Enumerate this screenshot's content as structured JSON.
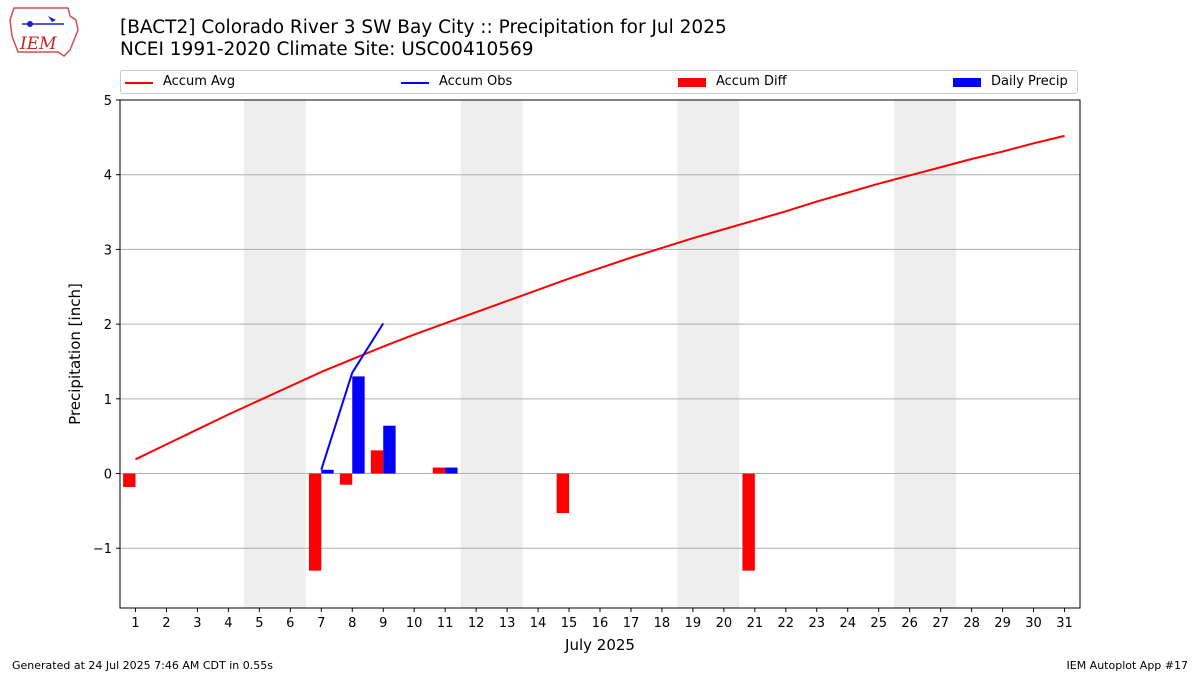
{
  "header": {
    "logo_text": "IEM",
    "title_line1": "[BACT2] Colorado River 3 SW Bay City :: Precipitation for Jul 2025",
    "title_line2": "NCEI 1991-2020 Climate Site: USC00410569"
  },
  "legend": {
    "items": [
      {
        "label": "Accum Avg",
        "color": "#ff0000",
        "kind": "line"
      },
      {
        "label": "Accum Obs",
        "color": "#0000ff",
        "kind": "line"
      },
      {
        "label": "Accum Diff",
        "color": "#ff0000",
        "kind": "patch"
      },
      {
        "label": "Daily Precip",
        "color": "#0000ff",
        "kind": "patch"
      }
    ]
  },
  "footer": {
    "generated": "Generated at 24 Jul 2025 7:46 AM CDT in 0.55s",
    "app": "IEM Autoplot App #17"
  },
  "chart_data": {
    "type": "bar",
    "xlabel": "July 2025",
    "ylabel": "Precipitation [inch]",
    "xlim": [
      0.5,
      31.5
    ],
    "ylim": [
      -1.8,
      5
    ],
    "yticks": [
      -1,
      0,
      1,
      2,
      3,
      4,
      5
    ],
    "grid": "y",
    "legend_position": "top",
    "days": [
      1,
      2,
      3,
      4,
      5,
      6,
      7,
      8,
      9,
      10,
      11,
      12,
      13,
      14,
      15,
      16,
      17,
      18,
      19,
      20,
      21,
      22,
      23,
      24,
      25,
      26,
      27,
      28,
      29,
      30,
      31
    ],
    "weekend_shading": [
      [
        5,
        6
      ],
      [
        12,
        13
      ],
      [
        19,
        20
      ],
      [
        26,
        27
      ]
    ],
    "series": [
      {
        "name": "Accum Avg",
        "kind": "line",
        "color": "#ff0000",
        "x": [
          1,
          2,
          3,
          4,
          5,
          6,
          7,
          8,
          9,
          10,
          11,
          12,
          13,
          14,
          15,
          16,
          17,
          18,
          19,
          20,
          21,
          22,
          23,
          24,
          25,
          26,
          27,
          28,
          29,
          30,
          31
        ],
        "values": [
          0.19,
          0.39,
          0.59,
          0.79,
          0.98,
          1.17,
          1.36,
          1.53,
          1.7,
          1.86,
          2.01,
          2.16,
          2.31,
          2.46,
          2.61,
          2.75,
          2.89,
          3.02,
          3.15,
          3.27,
          3.39,
          3.51,
          3.64,
          3.76,
          3.88,
          3.99,
          4.1,
          4.21,
          4.31,
          4.42,
          4.52
        ]
      },
      {
        "name": "Accum Obs",
        "kind": "line",
        "color": "#0000ff",
        "x": [
          7,
          8,
          9
        ],
        "values": [
          0.05,
          1.35,
          2.01
        ]
      },
      {
        "name": "Accum Diff",
        "kind": "bar",
        "color": "#ff0000",
        "offset": -0.2,
        "x": [
          1,
          7,
          8,
          9,
          11,
          15,
          21
        ],
        "values": [
          -0.18,
          -1.3,
          -0.15,
          0.31,
          0.08,
          -0.53,
          -1.3
        ]
      },
      {
        "name": "Daily Precip",
        "kind": "bar",
        "color": "#0000ff",
        "offset": 0.2,
        "x": [
          7,
          8,
          9,
          11
        ],
        "values": [
          0.05,
          1.3,
          0.64,
          0.08
        ]
      }
    ]
  }
}
